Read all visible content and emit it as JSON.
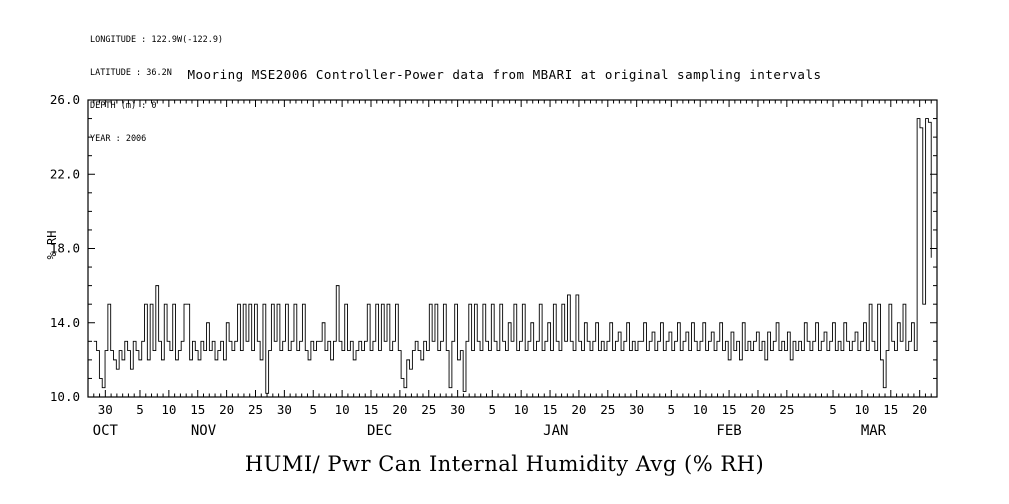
{
  "meta": {
    "lines": [
      "LONGITUDE : 122.9W(-122.9)",
      "LATITUDE : 36.2N",
      "DEPTH (m) : 0",
      "YEAR : 2006"
    ]
  },
  "title": "Mooring MSE2006 Controller-Power data from MBARI at original sampling intervals",
  "caption": "HUMI/ Pwr Can Internal Humidity Avg (% RH)",
  "chart_data": {
    "type": "line",
    "title": "Mooring MSE2006 Controller-Power data from MBARI at original sampling intervals",
    "series_name": "HUMI/ Pwr Can Internal Humidity Avg (% RH)",
    "ylabel": "% RH",
    "ylim": [
      10.0,
      26.0
    ],
    "yticks": [
      10.0,
      14.0,
      18.0,
      22.0,
      26.0
    ],
    "ytick_labels": [
      "10.0",
      "14.0",
      "18.0",
      "22.0",
      "26.0"
    ],
    "y_minor_step": 1.0,
    "x_domain_days": [
      -1,
      146
    ],
    "x_data_days": [
      0,
      145
    ],
    "xticks": [
      {
        "d": 2,
        "t": "30"
      },
      {
        "d": 8,
        "t": "5"
      },
      {
        "d": 13,
        "t": "10"
      },
      {
        "d": 18,
        "t": "15"
      },
      {
        "d": 23,
        "t": "20"
      },
      {
        "d": 28,
        "t": "25"
      },
      {
        "d": 33,
        "t": "30"
      },
      {
        "d": 38,
        "t": "5"
      },
      {
        "d": 43,
        "t": "10"
      },
      {
        "d": 48,
        "t": "15"
      },
      {
        "d": 53,
        "t": "20"
      },
      {
        "d": 58,
        "t": "25"
      },
      {
        "d": 63,
        "t": "30"
      },
      {
        "d": 69,
        "t": "5"
      },
      {
        "d": 74,
        "t": "10"
      },
      {
        "d": 79,
        "t": "15"
      },
      {
        "d": 84,
        "t": "20"
      },
      {
        "d": 89,
        "t": "25"
      },
      {
        "d": 94,
        "t": "30"
      },
      {
        "d": 100,
        "t": "5"
      },
      {
        "d": 105,
        "t": "10"
      },
      {
        "d": 110,
        "t": "15"
      },
      {
        "d": 115,
        "t": "20"
      },
      {
        "d": 120,
        "t": "25"
      },
      {
        "d": 128,
        "t": "5"
      },
      {
        "d": 133,
        "t": "10"
      },
      {
        "d": 138,
        "t": "15"
      },
      {
        "d": 143,
        "t": "20"
      }
    ],
    "months": [
      {
        "d": 2,
        "t": "OCT"
      },
      {
        "d": 19,
        "t": "NOV"
      },
      {
        "d": 49.5,
        "t": "DEC"
      },
      {
        "d": 80,
        "t": "JAN"
      },
      {
        "d": 110,
        "t": "FEB"
      },
      {
        "d": 135,
        "t": "MAR"
      }
    ],
    "values": [
      13,
      12.5,
      11,
      10.5,
      12.5,
      15,
      12.5,
      12,
      11.5,
      12.5,
      12,
      13,
      12.5,
      11.5,
      13,
      12.5,
      12,
      13,
      15,
      12,
      15,
      12.5,
      16,
      13,
      12,
      15,
      13,
      12.5,
      15,
      12,
      12.5,
      13,
      15,
      15,
      12,
      13,
      12.5,
      12,
      13,
      12.5,
      14,
      12.5,
      13,
      12,
      12.5,
      13,
      12,
      14,
      13,
      12.5,
      13,
      15,
      12.5,
      15,
      13,
      15,
      12.5,
      15,
      13,
      12,
      15,
      10.2,
      12.5,
      15,
      13,
      15,
      12.5,
      13,
      15,
      12.5,
      13,
      15,
      12.5,
      13,
      15,
      12.5,
      12,
      13,
      12.5,
      13,
      13,
      14,
      12.5,
      13,
      12,
      13,
      16,
      13,
      12.5,
      15,
      12.5,
      13,
      12,
      12.5,
      13,
      12.5,
      13,
      15,
      12.5,
      13,
      15,
      12.5,
      15,
      13,
      15,
      12.5,
      13,
      15,
      12.5,
      11,
      10.5,
      12,
      11.5,
      12.5,
      13,
      12.5,
      12,
      13,
      12.5,
      15,
      13,
      15,
      12.5,
      13,
      15,
      12.5,
      10.5,
      13,
      15,
      12,
      12.5,
      10.3,
      13,
      15,
      12.5,
      15,
      13,
      12.5,
      15,
      13,
      12.5,
      15,
      13,
      12.5,
      15,
      13,
      12.5,
      14,
      13,
      15,
      12.5,
      13,
      15,
      12.5,
      13,
      14,
      12.5,
      13,
      15,
      12.5,
      13,
      14,
      12.5,
      15,
      13,
      12.5,
      15,
      13,
      15.5,
      13,
      12.5,
      15.5,
      13,
      12.5,
      14,
      13,
      12.5,
      13,
      14,
      12.5,
      13,
      12.5,
      13,
      14,
      12.5,
      13,
      13.5,
      12.5,
      13,
      14,
      12.5,
      13,
      12.5,
      13,
      13,
      14,
      12.5,
      13,
      13.5,
      12.5,
      13,
      14,
      12.5,
      13,
      13.5,
      12.5,
      13,
      14,
      12.5,
      13,
      13.5,
      12.5,
      14,
      13,
      12.5,
      13,
      14,
      12.5,
      13,
      13.5,
      12.5,
      13,
      14,
      12.5,
      13,
      12,
      13.5,
      12.5,
      13,
      12,
      14,
      12.5,
      13,
      12.5,
      13,
      13.5,
      12.5,
      13,
      12,
      13.5,
      12.5,
      13,
      14,
      12.5,
      13,
      12.5,
      13.5,
      12,
      13,
      12.5,
      13,
      12.5,
      14,
      13,
      12.5,
      13,
      14,
      12.5,
      13,
      13.5,
      12.5,
      13,
      14,
      12.5,
      13,
      12.5,
      14,
      13,
      12.5,
      13,
      13.5,
      12.5,
      13,
      14,
      12.5,
      15,
      13,
      12.5,
      15,
      12,
      10.5,
      12.5,
      15,
      13,
      12.5,
      14,
      13,
      15,
      12.5,
      13,
      14,
      12.5,
      25,
      24.5,
      15,
      25,
      24.8,
      17.5
    ]
  }
}
